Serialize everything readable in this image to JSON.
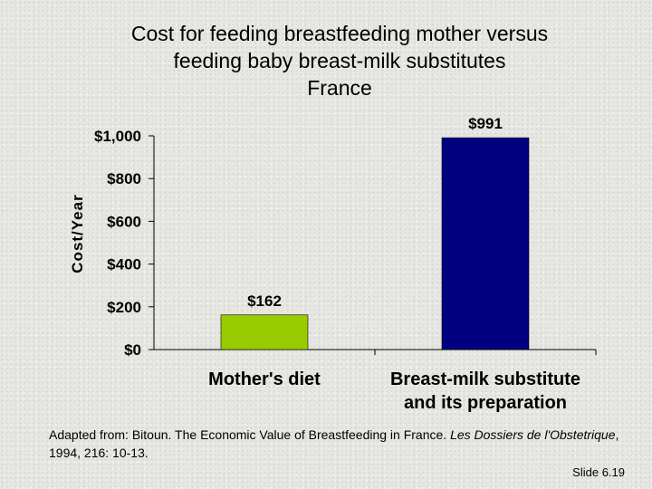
{
  "title_lines": [
    "Cost for feeding breastfeeding mother versus",
    "feeding baby breast-milk substitutes",
    "France"
  ],
  "chart_data": {
    "type": "bar",
    "categories": [
      "Mother's diet",
      "Breast-milk substitute and its preparation"
    ],
    "category_label_lines": [
      [
        "Mother's diet"
      ],
      [
        "Breast-milk substitute",
        "and its preparation"
      ]
    ],
    "values": [
      162,
      991
    ],
    "data_labels": [
      "$162",
      "$991"
    ],
    "bar_colors": [
      "#99cc00",
      "#000080"
    ],
    "ylabel": "Cost/Year",
    "xlabel": "",
    "ylim": [
      0,
      1000
    ],
    "yticks": [
      0,
      200,
      400,
      600,
      800,
      1000
    ],
    "ytick_labels": [
      "$0",
      "$200",
      "$400",
      "$600",
      "$800",
      "$1,000"
    ],
    "grid": false,
    "legend": "none"
  },
  "source": {
    "prefix": "Adapted from: Bitoun. The Economic Value of Breastfeeding in France.",
    "journal": "Les Dossiers de l'Obstetrique",
    "suffix": ", 1994, 216: 10-13."
  },
  "slide_number": "Slide 6.19"
}
